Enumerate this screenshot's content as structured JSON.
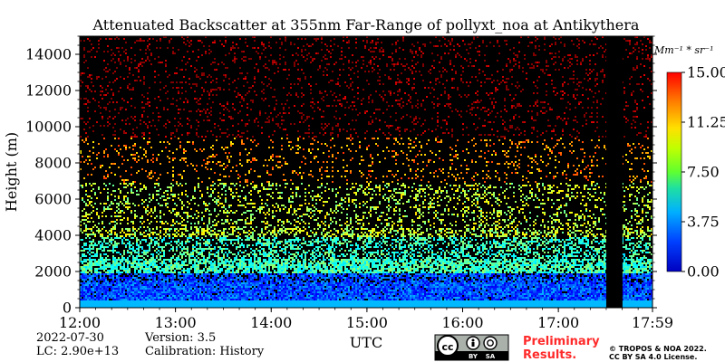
{
  "chart_data": {
    "type": "heatmap",
    "title": "Attenuated Backscatter at 355nm Far-Range of pollyxt_noa at Antikythera",
    "xlabel": "UTC",
    "ylabel": "Height (m)",
    "x_ticks": [
      "12:00",
      "13:00",
      "14:00",
      "15:00",
      "16:00",
      "17:00",
      "17:59"
    ],
    "x_range_hours": [
      12.0,
      17.9833
    ],
    "y_ticks": [
      0,
      2000,
      4000,
      6000,
      8000,
      10000,
      12000,
      14000
    ],
    "ylim": [
      0,
      15000
    ],
    "colorbar": {
      "unit_label": "Mm⁻¹ * sr⁻¹",
      "ticks": [
        "0.00",
        "3.75",
        "7.50",
        "11.25",
        "15.00"
      ],
      "range": [
        0,
        15
      ],
      "colormap": "jet"
    },
    "gaps": [
      {
        "start_hour": 17.5,
        "end_hour": 17.67,
        "color": "#000000"
      }
    ],
    "profile_layers": [
      {
        "height_range_m": [
          0,
          400
        ],
        "value": 4.0
      },
      {
        "height_range_m": [
          400,
          2000
        ],
        "value": 3.0
      },
      {
        "height_range_m": [
          2000,
          4000
        ],
        "value": 6.5
      },
      {
        "height_range_m": [
          4000,
          7000
        ],
        "value": 8.5
      },
      {
        "height_range_m": [
          7000,
          9500
        ],
        "value": 11.0
      },
      {
        "height_range_m": [
          9500,
          15000
        ],
        "value": 15.0
      }
    ],
    "background_color": "#000000"
  },
  "footer": {
    "date": "2022-07-30",
    "lc": "LC: 2.90e+13",
    "version": "Version: 3.5",
    "calibration": "Calibration: History",
    "preliminary_line1": "Preliminary",
    "preliminary_line2": "Results.",
    "copyright_line1": "© TROPOS & NOA 2022.",
    "copyright_line2": "CC BY SA 4.0 License.",
    "license_badge": {
      "cc": "cc",
      "by": "BY",
      "sa": "SA"
    }
  }
}
